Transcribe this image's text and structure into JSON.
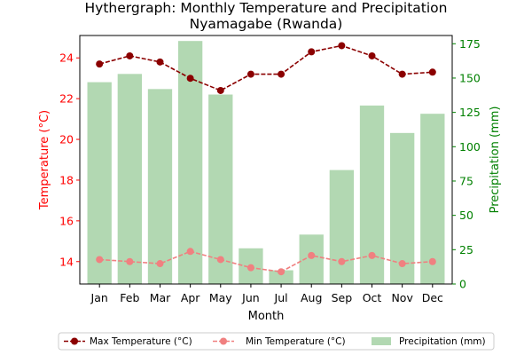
{
  "chart_data": {
    "type": "bar+line",
    "title_line1": "Hythergraph: Monthly Temperature and Precipitation",
    "title_line2": "Nyamagabe (Rwanda)",
    "xlabel": "Month",
    "ylabel_left": "Temperature (°C)",
    "ylabel_right": "Precipitation (mm)",
    "categories": [
      "Jan",
      "Feb",
      "Mar",
      "Apr",
      "May",
      "Jun",
      "Jul",
      "Aug",
      "Sep",
      "Oct",
      "Nov",
      "Dec"
    ],
    "ylim_left": [
      12.9,
      25.1
    ],
    "yticks_left": [
      "14",
      "16",
      "18",
      "20",
      "22",
      "24"
    ],
    "ylim_right": [
      0,
      181
    ],
    "yticks_right": [
      "0",
      "25",
      "50",
      "75",
      "100",
      "125",
      "150",
      "175"
    ],
    "series": [
      {
        "name": "Max Temperature (°C)",
        "kind": "line",
        "axis": "left",
        "values": [
          23.7,
          24.1,
          23.8,
          23.0,
          22.4,
          23.2,
          23.2,
          24.3,
          24.6,
          24.1,
          23.2,
          23.3
        ]
      },
      {
        "name": "Min Temperature (°C)",
        "kind": "line",
        "axis": "left",
        "values": [
          14.1,
          14.0,
          13.9,
          14.5,
          14.1,
          13.7,
          13.5,
          14.3,
          14.0,
          14.3,
          13.9,
          14.0
        ]
      },
      {
        "name": "Precipitation (mm)",
        "kind": "bar",
        "axis": "right",
        "values": [
          147,
          153,
          142,
          177,
          138,
          26,
          10,
          36,
          83,
          130,
          110,
          124
        ]
      }
    ],
    "colors": {
      "max": "#8b0000",
      "min": "#f08080",
      "precip": "#b2d8b2",
      "left_axis": "#ff0000",
      "right_axis": "#008000"
    },
    "legend_position": "bottom-center",
    "grid": false
  }
}
